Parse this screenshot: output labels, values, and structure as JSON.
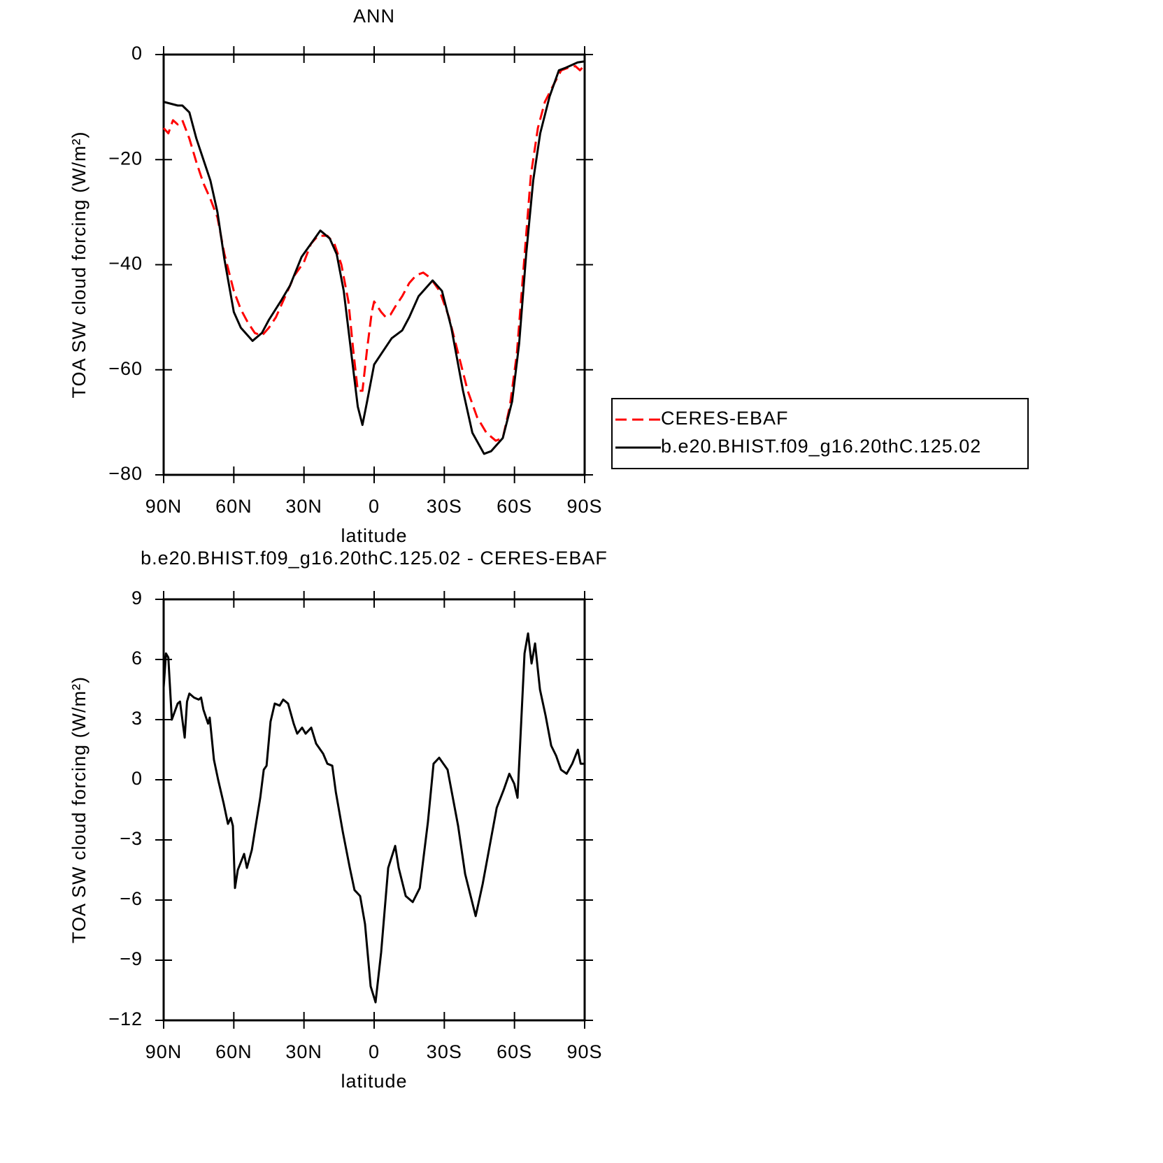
{
  "chart_data": [
    {
      "type": "line",
      "title": "ANN",
      "x_label": "latitude",
      "y_label": "TOA SW cloud forcing (W/m²)",
      "xlim": [
        90,
        -90
      ],
      "xticks": [
        {
          "value": 90,
          "label": "90N"
        },
        {
          "value": 60,
          "label": "60N"
        },
        {
          "value": 30,
          "label": "30N"
        },
        0,
        {
          "value": -30,
          "label": "30S"
        },
        {
          "value": -60,
          "label": "60S"
        },
        {
          "value": -90,
          "label": "90S"
        }
      ],
      "ylim": [
        -80,
        0
      ],
      "yticks": [
        {
          "value": -80,
          "label": "−80"
        },
        {
          "value": -60,
          "label": "−60"
        },
        {
          "value": -40,
          "label": "−40"
        },
        {
          "value": -20,
          "label": "−20"
        },
        0
      ],
      "legend": "right",
      "series": [
        {
          "name": "CERES-EBAF",
          "color": "#ff0000",
          "linestyle": "dashed",
          "x": [
            90,
            88,
            86,
            84,
            82,
            79,
            76,
            73,
            70,
            67,
            64,
            60,
            57,
            54,
            51,
            48,
            45,
            42,
            38,
            34,
            30,
            27,
            24,
            20,
            17,
            14,
            11,
            9,
            7,
            5,
            3,
            1,
            0,
            -3,
            -5,
            -7,
            -9,
            -12,
            -15,
            -18,
            -21,
            -24,
            -28,
            -32,
            -36,
            -40,
            -44,
            -48,
            -52,
            -55,
            -58,
            -61,
            -64,
            -67,
            -70,
            -73,
            -77,
            -80,
            -83,
            -86,
            -88,
            -90
          ],
          "values": [
            -14,
            -15,
            -12.5,
            -13.3,
            -12.5,
            -16,
            -20.5,
            -24.5,
            -27.5,
            -31,
            -38,
            -45,
            -48.5,
            -51,
            -53,
            -53.5,
            -52,
            -50,
            -46,
            -42,
            -39.5,
            -36,
            -34.5,
            -34.5,
            -36,
            -40,
            -47,
            -56,
            -64,
            -64,
            -56,
            -49,
            -47,
            -49,
            -50,
            -49.5,
            -48,
            -46,
            -43.5,
            -42,
            -41.5,
            -42.5,
            -45,
            -50,
            -57,
            -64,
            -69,
            -72,
            -73.5,
            -73,
            -67,
            -57,
            -40,
            -23,
            -14,
            -9,
            -5.5,
            -3,
            -2.5,
            -2.2,
            -3,
            -2
          ]
        },
        {
          "name": "b.e20.BHIST.f09_g16.20thC.125.02",
          "color": "#000000",
          "linestyle": "solid",
          "x": [
            90,
            84,
            82,
            79,
            76,
            73,
            70,
            67,
            64,
            60,
            57,
            52,
            48,
            45,
            40,
            36,
            31,
            27,
            23,
            19,
            16,
            13,
            10,
            7,
            5,
            3,
            0,
            -3,
            -7.5,
            -12,
            -15,
            -19,
            -25,
            -29,
            -33,
            -38,
            -42,
            -47,
            -50,
            -55,
            -59,
            -62,
            -65,
            -68,
            -71,
            -75,
            -79,
            -82,
            -87,
            -90
          ],
          "values": [
            -9,
            -9.7,
            -9.7,
            -11,
            -16,
            -20,
            -24,
            -30,
            -39,
            -49,
            -52,
            -54.5,
            -53,
            -50.5,
            -47,
            -44,
            -38.5,
            -36,
            -33.5,
            -35,
            -38,
            -45,
            -56,
            -67,
            -70.5,
            -66,
            -59,
            -57,
            -54,
            -52.5,
            -50,
            -46,
            -43,
            -45,
            -52,
            -64,
            -72,
            -76,
            -75.5,
            -73,
            -66,
            -55,
            -38,
            -24,
            -15,
            -8,
            -3,
            -2.5,
            -1.5,
            -1.3
          ]
        }
      ]
    },
    {
      "type": "line",
      "title": "b.e20.BHIST.f09_g16.20thC.125.02 - CERES-EBAF",
      "x_label": "latitude",
      "y_label": "TOA SW cloud forcing (W/m²)",
      "xlim": [
        90,
        -90
      ],
      "xticks": [
        {
          "value": 90,
          "label": "90N"
        },
        {
          "value": 60,
          "label": "60N"
        },
        {
          "value": 30,
          "label": "30N"
        },
        0,
        {
          "value": -30,
          "label": "30S"
        },
        {
          "value": -60,
          "label": "60S"
        },
        {
          "value": -90,
          "label": "90S"
        }
      ],
      "ylim": [
        -12,
        9
      ],
      "yticks": [
        {
          "value": -12,
          "label": "−12"
        },
        {
          "value": -9,
          "label": "−9"
        },
        {
          "value": -6,
          "label": "−6"
        },
        {
          "value": -3,
          "label": "−3"
        },
        0,
        3,
        6,
        9
      ],
      "series": [
        {
          "color": "#000000",
          "linestyle": "solid",
          "x": [
            90,
            89,
            88,
            86.5,
            84,
            83,
            81,
            80,
            79,
            77,
            75,
            74,
            73,
            71,
            70.3,
            68.5,
            66.7,
            64.3,
            62.5,
            61.3,
            60.4,
            59.5,
            58.3,
            55.6,
            54.4,
            52.3,
            50.8,
            48.7,
            47.2,
            46,
            44.3,
            42.5,
            40.4,
            38.9,
            36.8,
            34.4,
            32.9,
            30.8,
            29.3,
            26.9,
            24.8,
            21.8,
            20,
            17.9,
            16.4,
            13.4,
            10.4,
            8.4,
            6,
            3.9,
            1.5,
            -0.6,
            -3,
            -6,
            -9,
            -10.5,
            -13.5,
            -16.5,
            -19.5,
            -23,
            -25.4,
            -27.8,
            -31.4,
            -35.9,
            -38.9,
            -43.4,
            -46.4,
            -49.4,
            -52.4,
            -55.4,
            -57.8,
            -59.9,
            -61.3,
            -64.3,
            -65.8,
            -67.3,
            -68.8,
            -70.9,
            -73.3,
            -75.7,
            -77.8,
            -79.9,
            -82.3,
            -84.7,
            -87.1,
            -88.3,
            -90
          ],
          "values": [
            4.6,
            6.3,
            6.1,
            3.0,
            3.8,
            3.9,
            2.1,
            3.9,
            4.3,
            4.1,
            4.0,
            4.1,
            3.5,
            2.8,
            3.1,
            1.0,
            0,
            -1.2,
            -2.2,
            -1.9,
            -2.3,
            -5.4,
            -4.5,
            -3.7,
            -4.4,
            -3.5,
            -2.4,
            -0.9,
            0.5,
            0.7,
            2.9,
            3.8,
            3.7,
            4.0,
            3.8,
            2.8,
            2.3,
            2.6,
            2.3,
            2.6,
            1.8,
            1.3,
            0.8,
            0.7,
            -0.6,
            -2.6,
            -4.4,
            -5.5,
            -5.8,
            -7.2,
            -10.3,
            -11.1,
            -8.6,
            -4.4,
            -3.3,
            -4.4,
            -5.8,
            -6.1,
            -5.4,
            -2.1,
            0.8,
            1.1,
            0.5,
            -2.3,
            -4.7,
            -6.8,
            -5.2,
            -3.3,
            -1.4,
            -0.5,
            0.3,
            -0.2,
            -0.9,
            6.3,
            7.3,
            5.8,
            6.8,
            4.5,
            3.2,
            1.7,
            1.2,
            0.5,
            0.3,
            0.8,
            1.5,
            0.8,
            0.8
          ]
        }
      ]
    }
  ]
}
